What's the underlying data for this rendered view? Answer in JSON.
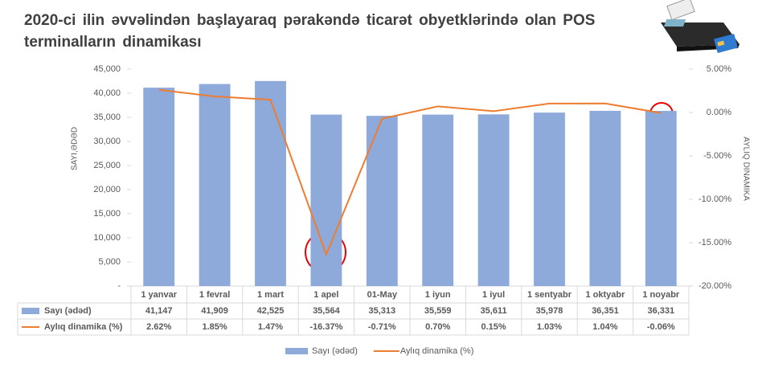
{
  "chart_data": {
    "type": "bar_line",
    "title": "2020-ci ilin əvvəlindən başlayaraq pərakəndə ticarət obyetklərində olan POS terminalların dinamikası",
    "y_label": "SAYI,ƏDƏD",
    "y2_label": "AYLIQ DINAMIKA",
    "categories": [
      "1 yanvar",
      "1 fevral",
      "1 mart",
      "1 apel",
      "01-May",
      "1 iyun",
      "1 iyul",
      "1 sentyabr",
      "1 oktyabr",
      "1 noyabr"
    ],
    "series": [
      {
        "name": "Sayı (ədəd)",
        "type": "bar",
        "color": "#8eaadb",
        "values": [
          41147,
          41909,
          42525,
          35564,
          35313,
          35559,
          35611,
          35978,
          36351,
          36331
        ],
        "value_labels": [
          "41,147",
          "41,909",
          "42,525",
          "35,564",
          "35,313",
          "35,559",
          "35,611",
          "35,978",
          "36,351",
          "36,331"
        ]
      },
      {
        "name": "Aylıq dinamika (%)",
        "type": "line",
        "axis": "y2",
        "color": "#ed7d31",
        "values": [
          2.62,
          1.85,
          1.47,
          -16.37,
          -0.71,
          0.7,
          0.15,
          1.03,
          1.04,
          -0.06
        ],
        "value_labels": [
          "2.62%",
          "1.85%",
          "1.47%",
          "-16.37%",
          "-0.71%",
          "0.70%",
          "0.15%",
          "1.03%",
          "1.04%",
          "-0.06%"
        ]
      }
    ],
    "ylim": [
      0,
      45000
    ],
    "yticks": [
      {
        "value": 0,
        "label": "-"
      },
      {
        "value": 5000,
        "label": "5,000"
      },
      {
        "value": 10000,
        "label": "10,000"
      },
      {
        "value": 15000,
        "label": "15,000"
      },
      {
        "value": 20000,
        "label": "20,000"
      },
      {
        "value": 25000,
        "label": "25,000"
      },
      {
        "value": 30000,
        "label": "30,000"
      },
      {
        "value": 35000,
        "label": "35,000"
      },
      {
        "value": 40000,
        "label": "40,000"
      },
      {
        "value": 45000,
        "label": "45,000"
      }
    ],
    "y2lim": [
      -20,
      5
    ],
    "y2ticks": [
      {
        "value": 5,
        "label": "5.00%"
      },
      {
        "value": 0,
        "label": "0.00%"
      },
      {
        "value": -5,
        "label": "-5.00%"
      },
      {
        "value": -10,
        "label": "-10.00%"
      },
      {
        "value": -15,
        "label": "-15.00%"
      },
      {
        "value": -20,
        "label": "-20.00%"
      }
    ],
    "legend": "bottom",
    "data_table": true
  }
}
